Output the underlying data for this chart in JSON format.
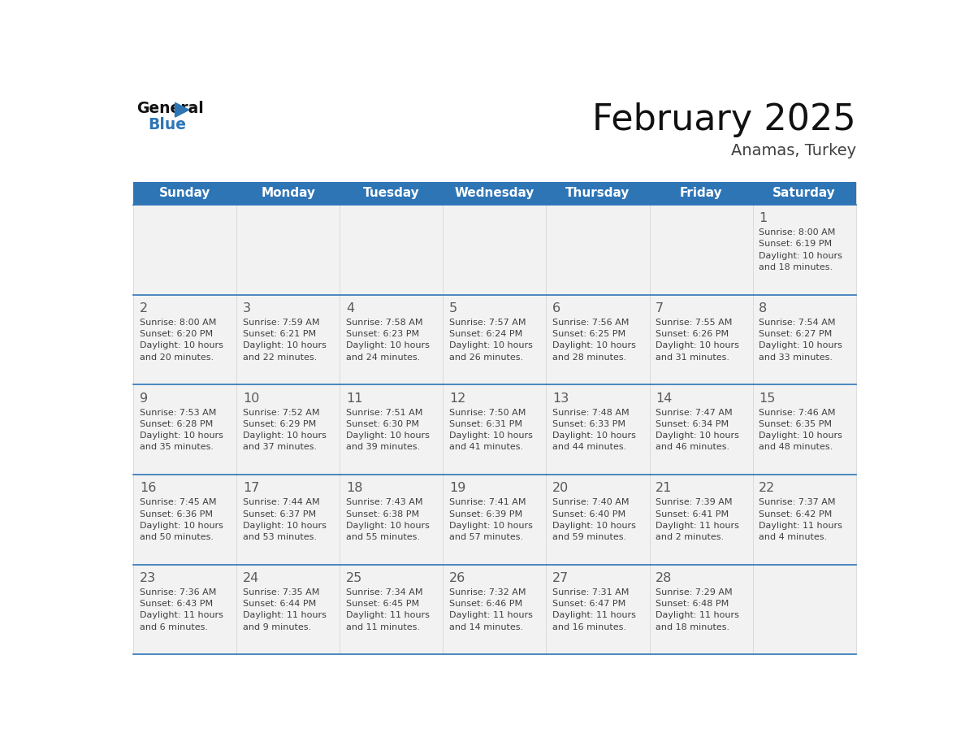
{
  "title": "February 2025",
  "subtitle": "Anamas, Turkey",
  "days_of_week": [
    "Sunday",
    "Monday",
    "Tuesday",
    "Wednesday",
    "Thursday",
    "Friday",
    "Saturday"
  ],
  "header_bg": "#2E75B6",
  "header_text": "#FFFFFF",
  "cell_bg": "#F2F2F2",
  "day_number_color": "#595959",
  "info_text_color": "#404040",
  "border_color": "#2E75B6",
  "cell_border_color": "#CCCCCC",
  "calendar_data": [
    [
      null,
      null,
      null,
      null,
      null,
      null,
      {
        "day": 1,
        "sunrise": "8:00 AM",
        "sunset": "6:19 PM",
        "daylight": "10 hours",
        "daylight2": "and 18 minutes."
      }
    ],
    [
      {
        "day": 2,
        "sunrise": "8:00 AM",
        "sunset": "6:20 PM",
        "daylight": "10 hours",
        "daylight2": "and 20 minutes."
      },
      {
        "day": 3,
        "sunrise": "7:59 AM",
        "sunset": "6:21 PM",
        "daylight": "10 hours",
        "daylight2": "and 22 minutes."
      },
      {
        "day": 4,
        "sunrise": "7:58 AM",
        "sunset": "6:23 PM",
        "daylight": "10 hours",
        "daylight2": "and 24 minutes."
      },
      {
        "day": 5,
        "sunrise": "7:57 AM",
        "sunset": "6:24 PM",
        "daylight": "10 hours",
        "daylight2": "and 26 minutes."
      },
      {
        "day": 6,
        "sunrise": "7:56 AM",
        "sunset": "6:25 PM",
        "daylight": "10 hours",
        "daylight2": "and 28 minutes."
      },
      {
        "day": 7,
        "sunrise": "7:55 AM",
        "sunset": "6:26 PM",
        "daylight": "10 hours",
        "daylight2": "and 31 minutes."
      },
      {
        "day": 8,
        "sunrise": "7:54 AM",
        "sunset": "6:27 PM",
        "daylight": "10 hours",
        "daylight2": "and 33 minutes."
      }
    ],
    [
      {
        "day": 9,
        "sunrise": "7:53 AM",
        "sunset": "6:28 PM",
        "daylight": "10 hours",
        "daylight2": "and 35 minutes."
      },
      {
        "day": 10,
        "sunrise": "7:52 AM",
        "sunset": "6:29 PM",
        "daylight": "10 hours",
        "daylight2": "and 37 minutes."
      },
      {
        "day": 11,
        "sunrise": "7:51 AM",
        "sunset": "6:30 PM",
        "daylight": "10 hours",
        "daylight2": "and 39 minutes."
      },
      {
        "day": 12,
        "sunrise": "7:50 AM",
        "sunset": "6:31 PM",
        "daylight": "10 hours",
        "daylight2": "and 41 minutes."
      },
      {
        "day": 13,
        "sunrise": "7:48 AM",
        "sunset": "6:33 PM",
        "daylight": "10 hours",
        "daylight2": "and 44 minutes."
      },
      {
        "day": 14,
        "sunrise": "7:47 AM",
        "sunset": "6:34 PM",
        "daylight": "10 hours",
        "daylight2": "and 46 minutes."
      },
      {
        "day": 15,
        "sunrise": "7:46 AM",
        "sunset": "6:35 PM",
        "daylight": "10 hours",
        "daylight2": "and 48 minutes."
      }
    ],
    [
      {
        "day": 16,
        "sunrise": "7:45 AM",
        "sunset": "6:36 PM",
        "daylight": "10 hours",
        "daylight2": "and 50 minutes."
      },
      {
        "day": 17,
        "sunrise": "7:44 AM",
        "sunset": "6:37 PM",
        "daylight": "10 hours",
        "daylight2": "and 53 minutes."
      },
      {
        "day": 18,
        "sunrise": "7:43 AM",
        "sunset": "6:38 PM",
        "daylight": "10 hours",
        "daylight2": "and 55 minutes."
      },
      {
        "day": 19,
        "sunrise": "7:41 AM",
        "sunset": "6:39 PM",
        "daylight": "10 hours",
        "daylight2": "and 57 minutes."
      },
      {
        "day": 20,
        "sunrise": "7:40 AM",
        "sunset": "6:40 PM",
        "daylight": "10 hours",
        "daylight2": "and 59 minutes."
      },
      {
        "day": 21,
        "sunrise": "7:39 AM",
        "sunset": "6:41 PM",
        "daylight": "11 hours",
        "daylight2": "and 2 minutes."
      },
      {
        "day": 22,
        "sunrise": "7:37 AM",
        "sunset": "6:42 PM",
        "daylight": "11 hours",
        "daylight2": "and 4 minutes."
      }
    ],
    [
      {
        "day": 23,
        "sunrise": "7:36 AM",
        "sunset": "6:43 PM",
        "daylight": "11 hours",
        "daylight2": "and 6 minutes."
      },
      {
        "day": 24,
        "sunrise": "7:35 AM",
        "sunset": "6:44 PM",
        "daylight": "11 hours",
        "daylight2": "and 9 minutes."
      },
      {
        "day": 25,
        "sunrise": "7:34 AM",
        "sunset": "6:45 PM",
        "daylight": "11 hours",
        "daylight2": "and 11 minutes."
      },
      {
        "day": 26,
        "sunrise": "7:32 AM",
        "sunset": "6:46 PM",
        "daylight": "11 hours",
        "daylight2": "and 14 minutes."
      },
      {
        "day": 27,
        "sunrise": "7:31 AM",
        "sunset": "6:47 PM",
        "daylight": "11 hours",
        "daylight2": "and 16 minutes."
      },
      {
        "day": 28,
        "sunrise": "7:29 AM",
        "sunset": "6:48 PM",
        "daylight": "11 hours",
        "daylight2": "and 18 minutes."
      },
      null
    ]
  ]
}
